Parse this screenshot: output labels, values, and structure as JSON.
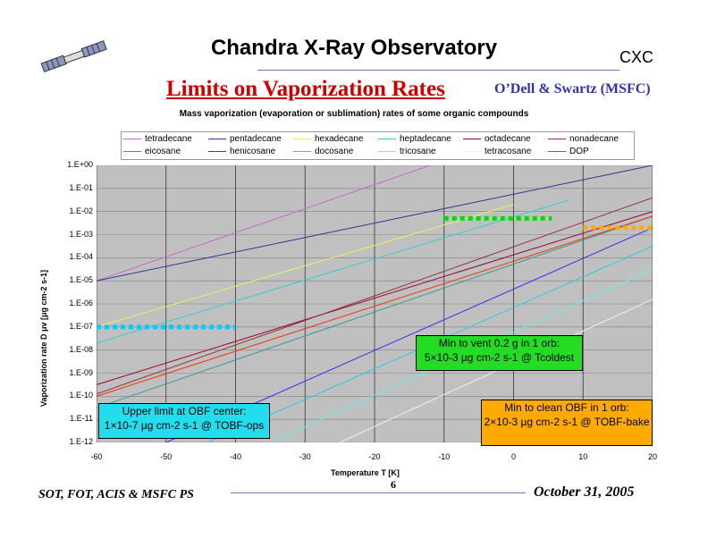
{
  "header": {
    "title": "Chandra X-Ray Observatory",
    "org": "CXC",
    "slide_title": "Limits on Vaporization Rates",
    "authors": "O’Dell & Swartz (MSFC)"
  },
  "footer": {
    "left": "SOT, FOT, ACIS & MSFC PS",
    "page": "6",
    "date": "October 31, 2005"
  },
  "colors": {
    "plot_bg": "#c0c0c0",
    "title_red": "#cc0000",
    "author_blue": "#3333aa"
  },
  "callouts": [
    {
      "line1": "Min to vent 0.2 g in 1 orb:",
      "line2": "5×10-3 µg cm-2 s-1 @ Tcoldest",
      "bg": "#22dd22"
    },
    {
      "line1": "Upper limit at OBF center:",
      "line2": "1×10-7 µg cm-2 s-1 @ TOBF-ops",
      "bg": "#22ddee"
    },
    {
      "line1": "Min to clean OBF in 1 orb:",
      "line2": "2×10-3 µg cm-2 s-1 @ TOBF-bake",
      "bg": "#ffaa00"
    }
  ],
  "chart_data": {
    "type": "line",
    "title": "Mass vaporization (evaporation or sublimation) rates of some organic compounds",
    "xlabel": "Temperature  T [K]",
    "ylabel": "Vaporization rate  D  μv [μg cm-2 s-1]",
    "xlim": [
      -60,
      20
    ],
    "ylim_log10": [
      -12,
      0
    ],
    "x_ticks": [
      "-60",
      "-50",
      "-40",
      "-30",
      "-20",
      "-10",
      "0",
      "10",
      "20"
    ],
    "y_ticks": [
      "1.E+00",
      "1.E-01",
      "1.E-02",
      "1.E-03",
      "1.E-04",
      "1.E-05",
      "1.E-06",
      "1.E-07",
      "1.E-08",
      "1.E-09",
      "1.E-10",
      "1.E-11",
      "1.E-12"
    ],
    "series": [
      {
        "name": "tetradecane",
        "color": "#cc66cc",
        "x": [
          -60,
          -12
        ],
        "log10_y": [
          -5.0,
          0.0
        ]
      },
      {
        "name": "pentadecane",
        "color": "#333399",
        "x": [
          -60,
          20
        ],
        "log10_y": [
          -5.0,
          0.0
        ]
      },
      {
        "name": "hexadecane",
        "color": "#eeee66",
        "x": [
          -60,
          0
        ],
        "log10_y": [
          -7.0,
          -1.7
        ]
      },
      {
        "name": "heptadecane",
        "color": "#33cccc",
        "x": [
          -60,
          8
        ],
        "log10_y": [
          -7.7,
          -1.5
        ]
      },
      {
        "name": "octadecane",
        "color": "#990033",
        "x": [
          -60,
          20
        ],
        "log10_y": [
          -9.5,
          -2.0
        ]
      },
      {
        "name": "nonadecane",
        "color": "#993333",
        "x": [
          -60,
          20
        ],
        "log10_y": [
          -9.9,
          -1.4
        ]
      },
      {
        "name": "eicosane",
        "color": "#339999",
        "x": [
          -60,
          20
        ],
        "log10_y": [
          -10.5,
          -2.2
        ]
      },
      {
        "name": "henicosane",
        "color": "#3333ee",
        "x": [
          -50,
          20
        ],
        "log10_y": [
          -12.0,
          -2.7
        ]
      },
      {
        "name": "docosane",
        "color": "#22ccee",
        "x": [
          -44,
          20
        ],
        "log10_y": [
          -12.0,
          -3.5
        ]
      },
      {
        "name": "tricosane",
        "color": "#66eeee",
        "x": [
          -35,
          20
        ],
        "log10_y": [
          -12.0,
          -4.5
        ]
      },
      {
        "name": "tetracosane",
        "color": "#eeeeee",
        "x": [
          -25,
          20
        ],
        "log10_y": [
          -12.0,
          -5.8
        ]
      },
      {
        "name": "DOP",
        "color": "#ee3300",
        "x": [
          -60,
          20
        ],
        "log10_y": [
          -10.0,
          -2.2
        ]
      }
    ],
    "reference_lines": [
      {
        "name": "vent-limit",
        "color": "#00dd00",
        "x": [
          -10,
          5.5
        ],
        "log10_y": [
          -2.3,
          -2.3
        ]
      },
      {
        "name": "obf-ops-limit",
        "color": "#00ccff",
        "x": [
          -60,
          -40
        ],
        "log10_y": [
          -7.0,
          -7.0
        ]
      },
      {
        "name": "obf-bake-limit",
        "color": "#ffaa00",
        "x": [
          10,
          20
        ],
        "log10_y": [
          -2.7,
          -2.7
        ]
      }
    ]
  }
}
